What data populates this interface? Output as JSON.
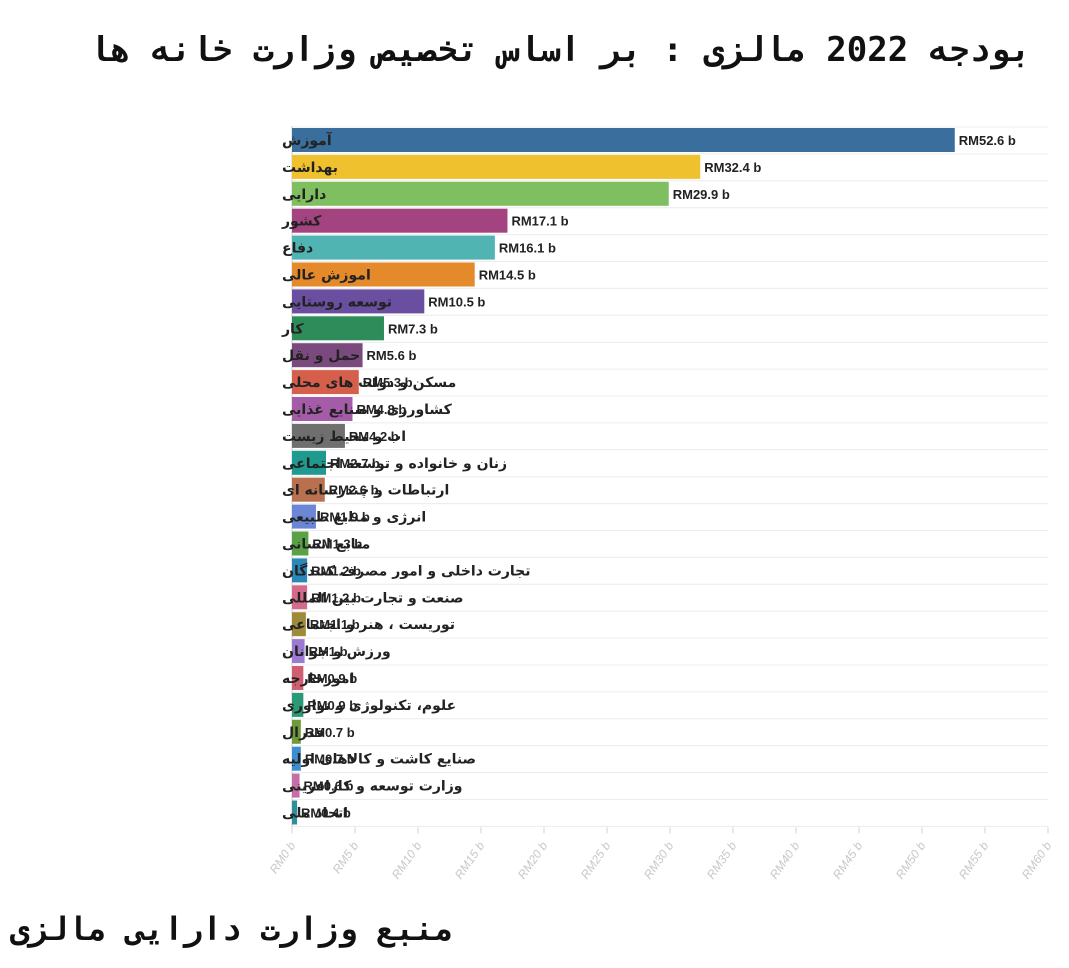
{
  "title": "بودجه 2022 مالزی : بر اساس تخصیص وزارت خانه ها",
  "source": "منبع وزارت دارایی مالزی",
  "chart_data": {
    "type": "bar",
    "orientation": "horizontal",
    "title": "بودجه 2022 مالزی : بر اساس تخصیص وزارت خانه ها",
    "xlim": [
      0,
      60
    ],
    "x_ticks": [
      0,
      5,
      10,
      15,
      20,
      25,
      30,
      35,
      40,
      45,
      50,
      55,
      60
    ],
    "x_tick_labels": [
      "RM0 b",
      "RM5 b",
      "RM10 b",
      "RM15 b",
      "RM20 b",
      "RM25 b",
      "RM30 b",
      "RM35 b",
      "RM40 b",
      "RM45 b",
      "RM50 b",
      "RM55 b",
      "RM60 b"
    ],
    "grid": true,
    "categories": [
      "آموزش",
      "بهداشت",
      "دارایی",
      "کشور",
      "دفاع",
      "اموزش عالی",
      "توسعه روستایی",
      "کار",
      "حمل و نقل",
      "مسکن و دولت های محلی",
      "کشاورزی و صنایع غذایی",
      "اب و محیط زیست",
      "زنان و خانواده و توسعه اجتماعی",
      "ارتباطات و چندرسانه ای",
      "انرژی و منابع طبیعی",
      "منابع انسانی",
      "تجارت داخلی و امور مصرف کنندگان",
      "صنعت و تجارت بین المللی",
      "توریست ، هنر و اجتماعی",
      "ورزش و جوانان",
      "امورخارجه",
      "علوم، تکنولوژی و نواوری",
      "فدرال",
      "صنایع کاشت و کالاهای اولیه",
      "وزارت توسعه و کارافرینی",
      "اتحاد ملی"
    ],
    "values": [
      52.6,
      32.4,
      29.9,
      17.1,
      16.1,
      14.5,
      10.5,
      7.3,
      5.6,
      5.3,
      4.8,
      4.2,
      2.7,
      2.6,
      1.9,
      1.3,
      1.2,
      1.2,
      1.1,
      1.0,
      0.9,
      0.9,
      0.7,
      0.7,
      0.6,
      0.4
    ],
    "value_labels": [
      "RM52.6 b",
      "RM32.4 b",
      "RM29.9 b",
      "RM17.1 b",
      "RM16.1 b",
      "RM14.5 b",
      "RM10.5 b",
      "RM7.3 b",
      "RM5.6 b",
      "RM5.3 b",
      "RM4.8 b",
      "RM4.2 b",
      "RM2.7 b",
      "RM2.6 b",
      "RM1.9 b",
      "RM1.3 b",
      "RM1.2 b",
      "RM1.2 b",
      "RM1.1 b",
      "RM1 b",
      "RM0.9 b",
      "RM0.9 b",
      "RM0.7 b",
      "RM0.7 b",
      "RM0.6 b",
      "RM0.4 b"
    ],
    "colors": [
      "#3a6e9c",
      "#efc12e",
      "#7fbf5f",
      "#a3437f",
      "#4fb4b2",
      "#e58a2a",
      "#6a4ea0",
      "#2e8b5a",
      "#7a4a7e",
      "#d65f4c",
      "#a45ba8",
      "#6f6f6f",
      "#1f9a8e",
      "#b8704e",
      "#6c86d6",
      "#5aa045",
      "#2b87b8",
      "#d46a8c",
      "#9e8b3a",
      "#9c7ad2",
      "#d06070",
      "#2a9a76",
      "#6f9a3a",
      "#3a8ed2",
      "#c46fa8",
      "#2f8f9a"
    ]
  }
}
